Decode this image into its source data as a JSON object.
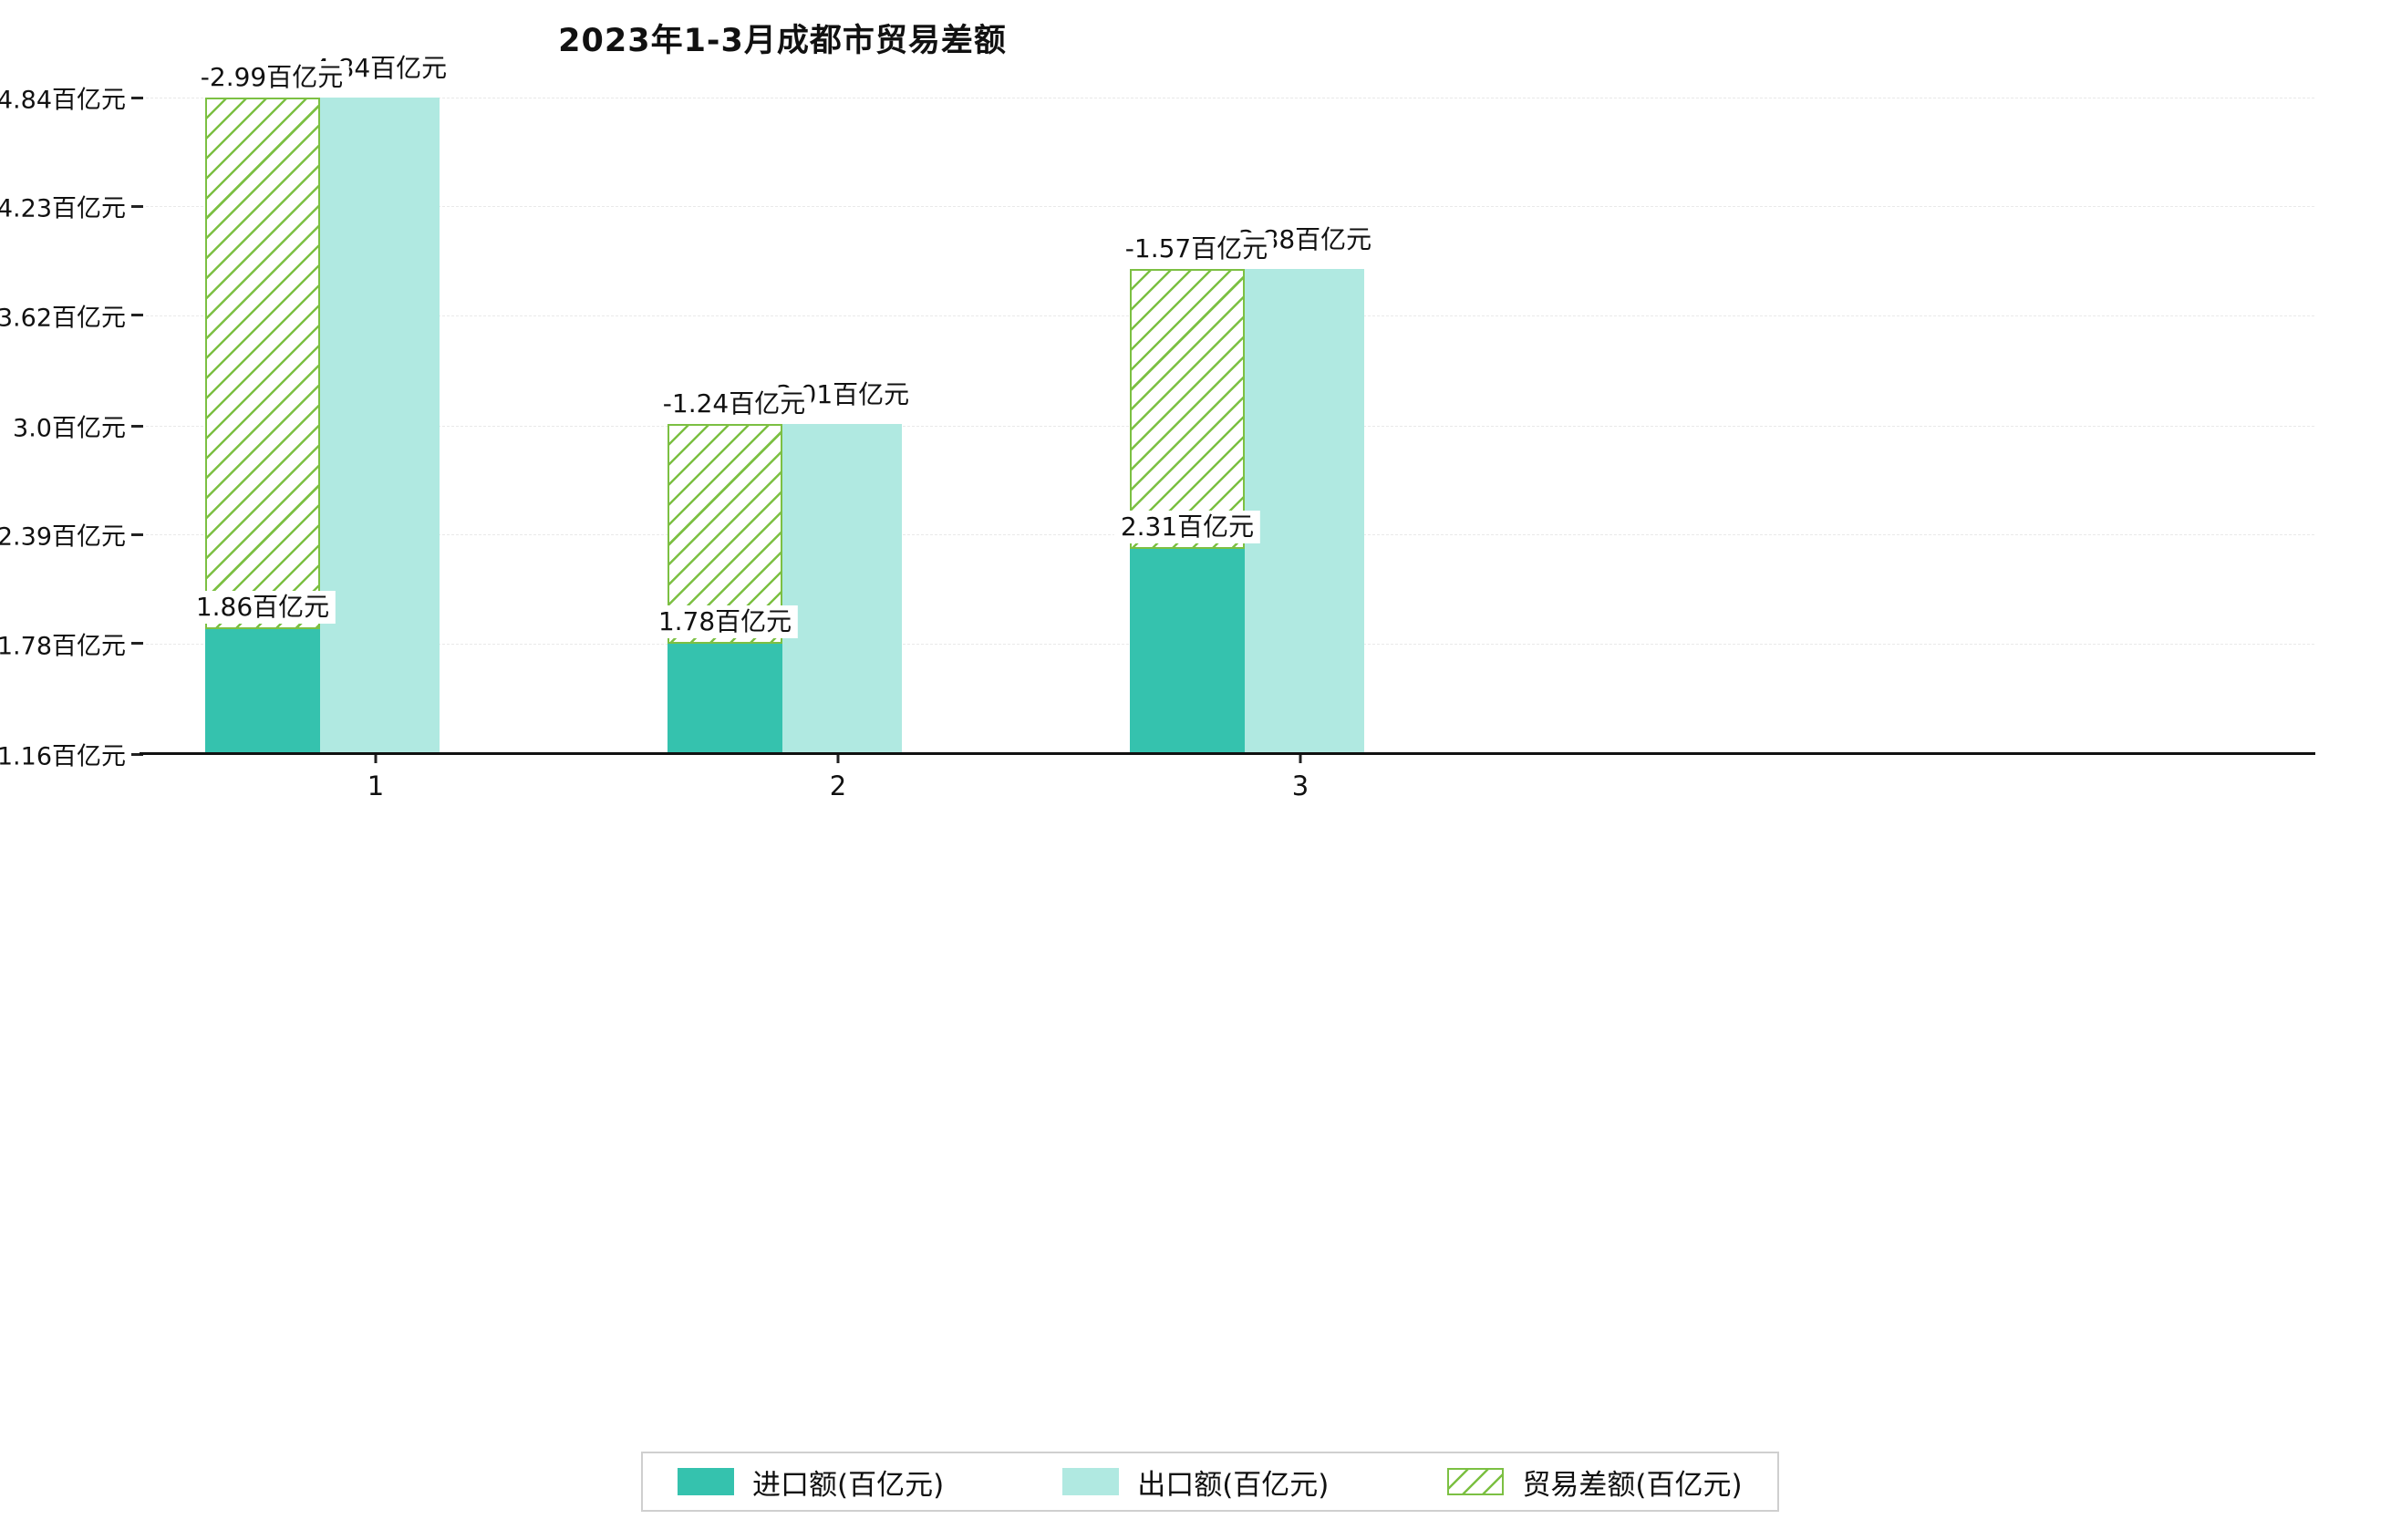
{
  "title": "2023年1-3月成都市贸易差额",
  "chart_data": {
    "type": "bar",
    "title": "2023年1-3月成都市贸易差额",
    "categories": [
      "1",
      "2",
      "3"
    ],
    "series": [
      {
        "name": "进口额(百亿元)",
        "role": "import",
        "style": "solid",
        "color": "#35c2ae",
        "values": [
          1.86,
          1.78,
          2.31
        ],
        "data_labels": [
          "1.86百亿元",
          "1.78百亿元",
          "2.31百亿元"
        ]
      },
      {
        "name": "出口额(百亿元)",
        "role": "export",
        "style": "solid",
        "color": "#b0e9e1",
        "values": [
          4.84,
          3.01,
          3.88
        ],
        "data_labels": [
          "4.84百亿元",
          "3.01百亿元",
          "3.88百亿元"
        ]
      },
      {
        "name": "贸易差额(百亿元)",
        "role": "trade-balance",
        "style": "hatched",
        "color": "#7cc043",
        "values": [
          -2.99,
          -1.24,
          -1.57
        ],
        "data_labels": [
          "-2.99百亿元",
          "-1.24百亿元",
          "-1.57百亿元"
        ]
      }
    ],
    "ylim": [
      1.16,
      4.84
    ],
    "yticks": [
      1.16,
      1.78,
      2.39,
      3.0,
      3.62,
      4.23,
      4.84
    ],
    "ytick_labels": [
      "1.16百亿元",
      "1.78百亿元",
      "2.39百亿元",
      "3.0百亿元",
      "3.62百亿元",
      "4.23百亿元",
      "4.84百亿元"
    ],
    "xlabel": "",
    "ylabel": "",
    "grid": true,
    "legend": {
      "position": "bottom",
      "entries": [
        "进口额(百亿元)",
        "出口额(百亿元)",
        "贸易差额(百亿元)"
      ]
    }
  },
  "colors": {
    "background": "#ffffff",
    "axis": "#111111",
    "grid": "#e9e9e9",
    "label_background": "#ffffff"
  }
}
